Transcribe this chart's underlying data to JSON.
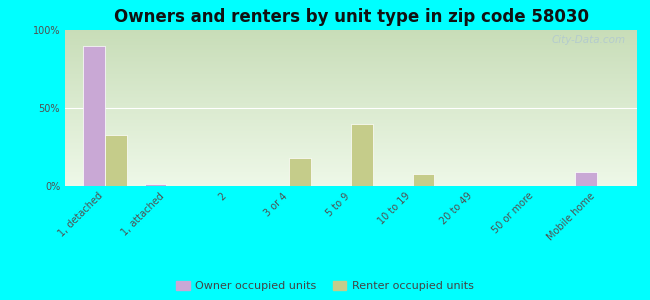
{
  "title": "Owners and renters by unit type in zip code 58030",
  "categories": [
    "1, detached",
    "1, attached",
    "2",
    "3 or 4",
    "5 to 9",
    "10 to 19",
    "20 to 49",
    "50 or more",
    "Mobile home"
  ],
  "owner_values": [
    90,
    1,
    0,
    0,
    0,
    0,
    0,
    0,
    9
  ],
  "renter_values": [
    33,
    0,
    0,
    18,
    40,
    8,
    0,
    0,
    0
  ],
  "owner_color": "#c9a8d5",
  "renter_color": "#c5cc8a",
  "background_color": "#00ffff",
  "grad_top": "#c8ddb8",
  "grad_bottom": "#eef8e8",
  "bar_width": 0.35,
  "ylim": [
    0,
    100
  ],
  "yticks": [
    0,
    50,
    100
  ],
  "ytick_labels": [
    "0%",
    "50%",
    "100%"
  ],
  "legend_owner": "Owner occupied units",
  "legend_renter": "Renter occupied units",
  "watermark": "City-Data.com",
  "title_fontsize": 12,
  "tick_fontsize": 7,
  "legend_fontsize": 8
}
